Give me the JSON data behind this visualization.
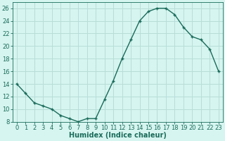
{
  "x": [
    0,
    1,
    2,
    3,
    4,
    5,
    6,
    7,
    8,
    9,
    10,
    11,
    12,
    13,
    14,
    15,
    16,
    17,
    18,
    19,
    20,
    21,
    22,
    23
  ],
  "y": [
    14,
    12.5,
    11,
    10.5,
    10,
    9,
    8.5,
    8,
    8.5,
    8.5,
    11.5,
    14.5,
    18,
    21,
    24,
    25.5,
    26,
    26,
    25,
    23,
    21.5,
    21,
    19.5,
    16
  ],
  "line_color": "#1a6b5a",
  "marker_color": "#1a6b5a",
  "bg_color": "#d6f5f0",
  "grid_color": "#b8ddd8",
  "xlabel": "Humidex (Indice chaleur)",
  "xlabel_fontsize": 7,
  "tick_fontsize": 6,
  "xlim": [
    -0.5,
    23.5
  ],
  "ylim": [
    8,
    27
  ],
  "yticks": [
    8,
    10,
    12,
    14,
    16,
    18,
    20,
    22,
    24,
    26
  ],
  "xticks": [
    0,
    1,
    2,
    3,
    4,
    5,
    6,
    7,
    8,
    9,
    10,
    11,
    12,
    13,
    14,
    15,
    16,
    17,
    18,
    19,
    20,
    21,
    22,
    23
  ]
}
